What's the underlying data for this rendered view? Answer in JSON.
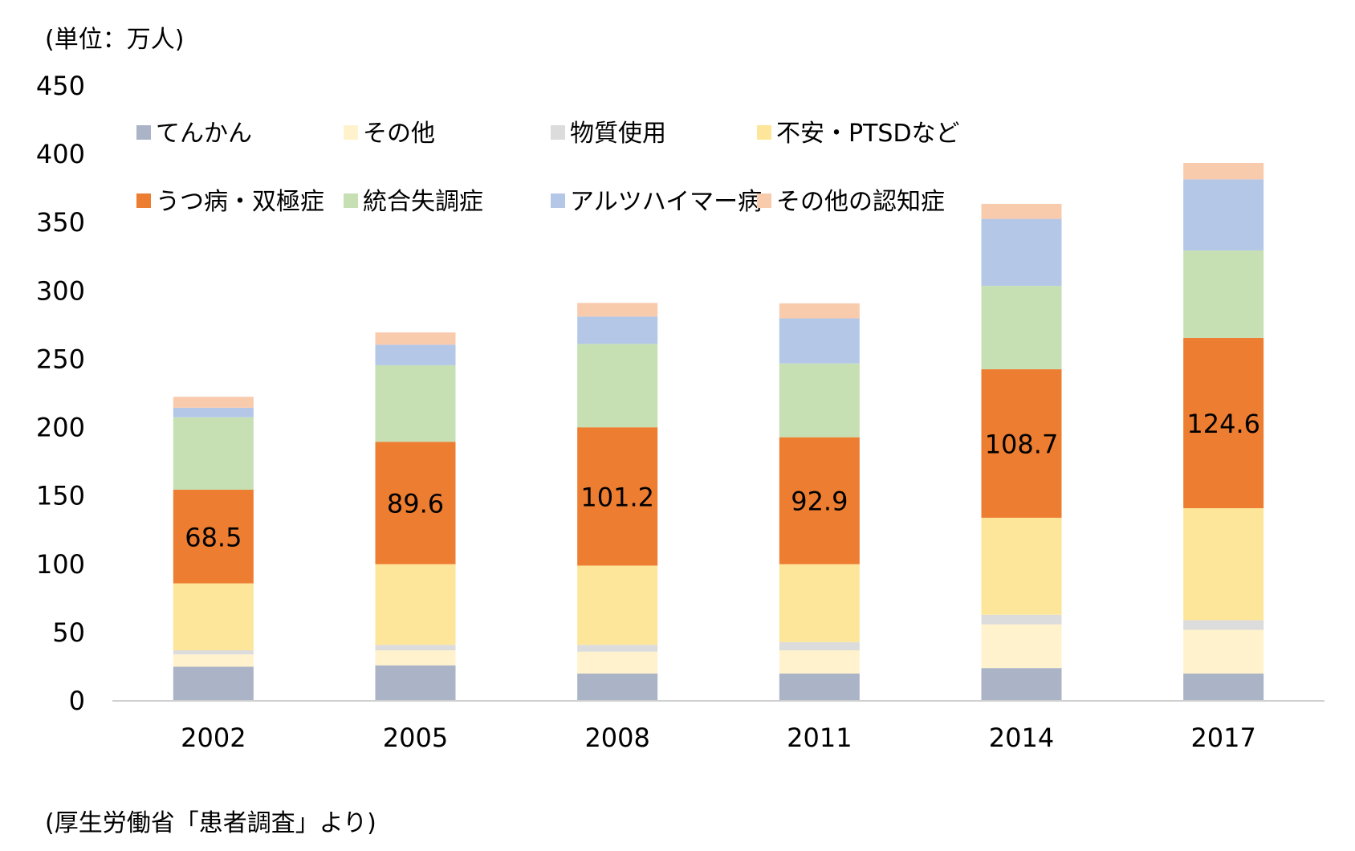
{
  "chart_data": {
    "type": "bar",
    "stacked": true,
    "unit_label": "(単位：万人)",
    "source_note": "(厚生労働省「患者調査」より)",
    "categories": [
      "2002",
      "2005",
      "2008",
      "2011",
      "2014",
      "2017"
    ],
    "ylim": [
      0,
      450
    ],
    "yticks": [
      0,
      50,
      100,
      150,
      200,
      250,
      300,
      350,
      400,
      450
    ],
    "grid": false,
    "legend_position": "top-left",
    "series": [
      {
        "name": "てんかん",
        "color": "#aab4c6",
        "values": [
          25,
          26,
          20,
          20,
          24,
          20
        ]
      },
      {
        "name": "その他",
        "color": "#fff2cc",
        "values": [
          9,
          11,
          16,
          17,
          32,
          32
        ]
      },
      {
        "name": "物質使用",
        "color": "#dcdcdc",
        "values": [
          3,
          4,
          5,
          6,
          7,
          7
        ]
      },
      {
        "name": "不安・PTSDなど",
        "color": "#fde699",
        "values": [
          49,
          59,
          58,
          57,
          71,
          82
        ]
      },
      {
        "name": "うつ病・双極症",
        "color": "#ed7d31",
        "values": [
          68.5,
          89.6,
          101.2,
          92.9,
          108.7,
          124.6
        ]
      },
      {
        "name": "統合失調症",
        "color": "#c6e0b4",
        "values": [
          53,
          56,
          61,
          54,
          61,
          64
        ]
      },
      {
        "name": "アルツハイマー病",
        "color": "#b4c7e7",
        "values": [
          7,
          15,
          20,
          33,
          49,
          52
        ]
      },
      {
        "name": "その他の認知症",
        "color": "#f8cbad",
        "values": [
          8,
          9,
          10,
          11,
          11,
          12
        ]
      }
    ],
    "data_labels": {
      "series": "うつ病・双極症",
      "values": [
        "68.5",
        "89.6",
        "101.2",
        "92.9",
        "108.7",
        "124.6"
      ]
    }
  }
}
